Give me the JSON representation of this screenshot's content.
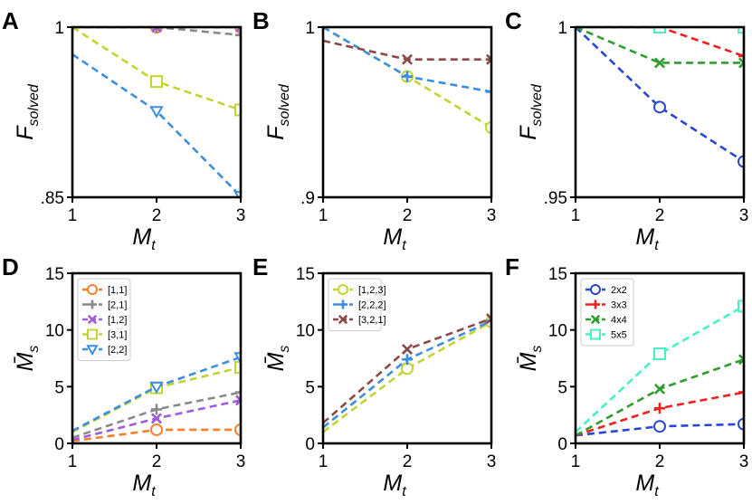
{
  "chart_data": [
    {
      "panel": "A",
      "type": "line",
      "row": 0,
      "col": 0,
      "xlabel_main": "M",
      "xlabel_sub": "t",
      "ylabel_main": "F",
      "ylabel_sub": "solved",
      "x": [
        1,
        2,
        3
      ],
      "xlim": [
        1,
        3
      ],
      "ylim": [
        0.85,
        1.0
      ],
      "xticks": [
        1,
        2,
        3
      ],
      "xtick_labels": [
        "1",
        "2",
        "3"
      ],
      "yticks": [
        0.85,
        1.0
      ],
      "ytick_labels": [
        ".85",
        "1"
      ],
      "legend": null,
      "series": [
        {
          "name": "[1,1]",
          "color": "#f97f2b",
          "marker": "circle",
          "values": [
            1.0,
            1.0,
            1.0
          ]
        },
        {
          "name": "[2,1]",
          "color": "#8a8a8a",
          "marker": "plus",
          "values": [
            1.0,
            1.0,
            0.993
          ]
        },
        {
          "name": "[1,2]",
          "color": "#a05bdc",
          "marker": "x",
          "values": [
            1.0,
            1.0,
            1.0
          ]
        },
        {
          "name": "[3,1]",
          "color": "#c3d431",
          "marker": "square",
          "values": [
            1.0,
            0.952,
            0.927
          ]
        },
        {
          "name": "[2,2]",
          "color": "#3b8fe0",
          "marker": "triangle",
          "values": [
            0.976,
            0.926,
            0.851
          ]
        }
      ]
    },
    {
      "panel": "B",
      "type": "line",
      "row": 0,
      "col": 1,
      "xlabel_main": "M",
      "xlabel_sub": "t",
      "ylabel_main": "F",
      "ylabel_sub": "solved",
      "x": [
        1,
        2,
        3
      ],
      "xlim": [
        1,
        3
      ],
      "ylim": [
        0.9,
        1.0
      ],
      "xticks": [
        1,
        2,
        3
      ],
      "xtick_labels": [
        "1",
        "2",
        "3"
      ],
      "yticks": [
        0.9,
        1.0
      ],
      "ytick_labels": [
        ".9",
        "1"
      ],
      "legend": null,
      "series": [
        {
          "name": "[1,2,3]",
          "color": "#c3d431",
          "marker": "circle",
          "values": [
            1.0,
            0.971,
            0.941
          ]
        },
        {
          "name": "[2,2,2]",
          "color": "#3b8fe0",
          "marker": "plus",
          "values": [
            1.0,
            0.971,
            0.962
          ]
        },
        {
          "name": "[3,2,1]",
          "color": "#8b4a45",
          "marker": "x",
          "values": [
            0.992,
            0.981,
            0.981
          ]
        }
      ]
    },
    {
      "panel": "C",
      "type": "line",
      "row": 0,
      "col": 2,
      "xlabel_main": "M",
      "xlabel_sub": "t",
      "ylabel_main": "F",
      "ylabel_sub": "solved",
      "x": [
        1,
        2,
        3
      ],
      "xlim": [
        1,
        3
      ],
      "ylim": [
        0.95,
        1.0
      ],
      "xticks": [
        1,
        2,
        3
      ],
      "xtick_labels": [
        "1",
        "2",
        "3"
      ],
      "yticks": [
        0.95,
        1.0
      ],
      "ytick_labels": [
        ".95",
        "1"
      ],
      "legend": null,
      "series": [
        {
          "name": "2x2",
          "color": "#2747d6",
          "marker": "circle",
          "values": [
            1.0,
            0.9765,
            0.9605
          ]
        },
        {
          "name": "3x3",
          "color": "#ee2020",
          "marker": "plus",
          "values": [
            1.0,
            1.0,
            0.9915
          ]
        },
        {
          "name": "4x4",
          "color": "#2e9e2e",
          "marker": "x",
          "values": [
            1.0,
            0.9895,
            0.9895
          ]
        },
        {
          "name": "5x5",
          "color": "#46f2c5",
          "marker": "square",
          "values": [
            1.0,
            1.0,
            1.0
          ]
        }
      ]
    },
    {
      "panel": "D",
      "type": "line",
      "row": 1,
      "col": 0,
      "xlabel_main": "M",
      "xlabel_sub": "t",
      "ylabel_main": "M̄",
      "ylabel_sub": "s",
      "x": [
        1,
        2,
        3
      ],
      "xlim": [
        1,
        3
      ],
      "ylim": [
        0,
        15
      ],
      "xticks": [
        1,
        2,
        3
      ],
      "xtick_labels": [
        "1",
        "2",
        "3"
      ],
      "yticks": [
        0,
        5,
        10,
        15
      ],
      "ytick_labels": [
        "0",
        "5",
        "10",
        "15"
      ],
      "legend": "top-left",
      "series": [
        {
          "name": "[1,1]",
          "color": "#f97f2b",
          "marker": "circle",
          "values": [
            0.2,
            1.2,
            1.2
          ]
        },
        {
          "name": "[2,1]",
          "color": "#8a8a8a",
          "marker": "plus",
          "values": [
            0.5,
            3.0,
            4.5
          ]
        },
        {
          "name": "[1,2]",
          "color": "#a05bdc",
          "marker": "x",
          "values": [
            0.3,
            2.2,
            3.8
          ]
        },
        {
          "name": "[3,1]",
          "color": "#c3d431",
          "marker": "square",
          "values": [
            1.0,
            4.9,
            6.7
          ]
        },
        {
          "name": "[2,2]",
          "color": "#3b8fe0",
          "marker": "triangle",
          "values": [
            1.1,
            5.0,
            7.6
          ]
        }
      ]
    },
    {
      "panel": "E",
      "type": "line",
      "row": 1,
      "col": 1,
      "xlabel_main": "M",
      "xlabel_sub": "t",
      "ylabel_main": "M̄",
      "ylabel_sub": "s",
      "x": [
        1,
        2,
        3
      ],
      "xlim": [
        1,
        3
      ],
      "ylim": [
        0,
        15
      ],
      "xticks": [
        1,
        2,
        3
      ],
      "xtick_labels": [
        "1",
        "2",
        "3"
      ],
      "yticks": [
        0,
        5,
        10,
        15
      ],
      "ytick_labels": [
        "0",
        "5",
        "10",
        "15"
      ],
      "legend": "top-left",
      "series": [
        {
          "name": "[1,2,3]",
          "color": "#c3d431",
          "marker": "circle",
          "values": [
            1.0,
            6.6,
            10.7
          ]
        },
        {
          "name": "[2,2,2]",
          "color": "#3b8fe0",
          "marker": "plus",
          "values": [
            1.4,
            7.4,
            10.8
          ]
        },
        {
          "name": "[3,2,1]",
          "color": "#8b4a45",
          "marker": "x",
          "values": [
            1.8,
            8.3,
            11.0
          ]
        }
      ]
    },
    {
      "panel": "F",
      "type": "line",
      "row": 1,
      "col": 2,
      "xlabel_main": "M",
      "xlabel_sub": "t",
      "ylabel_main": "M̄",
      "ylabel_sub": "s",
      "x": [
        1,
        2,
        3
      ],
      "xlim": [
        1,
        3
      ],
      "ylim": [
        0,
        15
      ],
      "xticks": [
        1,
        2,
        3
      ],
      "xtick_labels": [
        "1",
        "2",
        "3"
      ],
      "yticks": [
        0,
        5,
        10,
        15
      ],
      "ytick_labels": [
        "0",
        "5",
        "10",
        "15"
      ],
      "legend": "top-left",
      "series": [
        {
          "name": "2x2",
          "color": "#2747d6",
          "marker": "circle",
          "values": [
            0.7,
            1.5,
            1.7
          ]
        },
        {
          "name": "3x3",
          "color": "#ee2020",
          "marker": "plus",
          "values": [
            0.7,
            3.1,
            4.5
          ]
        },
        {
          "name": "4x4",
          "color": "#2e9e2e",
          "marker": "x",
          "values": [
            0.7,
            4.8,
            7.4
          ]
        },
        {
          "name": "5x5",
          "color": "#46f2c5",
          "marker": "square",
          "values": [
            1.0,
            7.9,
            12.1
          ]
        }
      ]
    }
  ]
}
